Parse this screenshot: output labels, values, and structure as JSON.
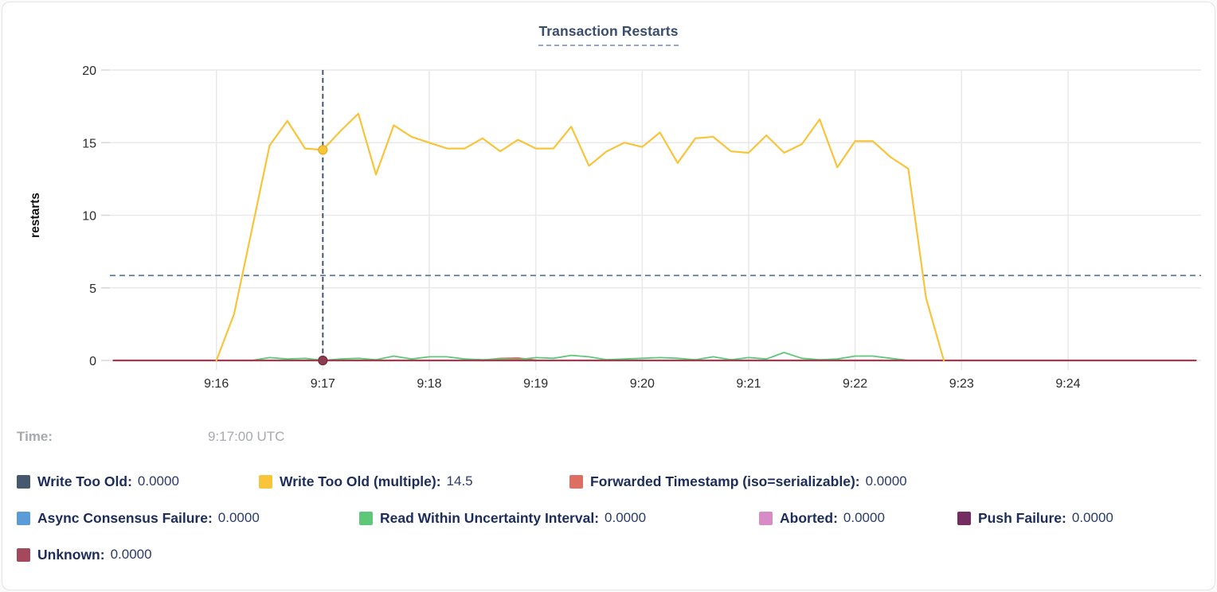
{
  "chart_data": {
    "type": "line",
    "title": "Transaction Restarts",
    "ylabel": "restarts",
    "xlabel": "",
    "ylim": [
      0,
      20
    ],
    "yticks": [
      0,
      5,
      10,
      15,
      20
    ],
    "xticks": [
      "9:16",
      "9:17",
      "9:18",
      "9:19",
      "9:20",
      "9:21",
      "9:22",
      "9:23",
      "9:24"
    ],
    "x_domain": [
      "9:15:00",
      "9:25:15"
    ],
    "grid": true,
    "legend_position": "bottom",
    "crosshair": {
      "time": "9:17:00",
      "vline_color": "#3d5068",
      "avg_guide_value": 5.85,
      "avg_guide_color": "#5b7a9b"
    },
    "hover_dots": [
      {
        "time": "9:17:00",
        "value": 14.5,
        "color": "#f8c43a",
        "stroke": "#e3ad22"
      },
      {
        "time": "9:17:00",
        "value": 0,
        "color": "#8e3a50",
        "stroke": "#6f2c3e"
      }
    ],
    "series": [
      {
        "name": "Write Too Old",
        "color": "#46586f",
        "width": 2,
        "points": [
          [
            "9:15:02",
            0
          ],
          [
            "9:25:12",
            0
          ]
        ]
      },
      {
        "name": "Async Consensus Failure",
        "color": "#5b9bd8",
        "width": 2,
        "points": [
          [
            "9:15:02",
            0
          ],
          [
            "9:25:12",
            0
          ]
        ]
      },
      {
        "name": "Aborted",
        "color": "#d78cc5",
        "width": 2,
        "points": [
          [
            "9:15:02",
            0
          ],
          [
            "9:25:12",
            0
          ]
        ]
      },
      {
        "name": "Push Failure",
        "color": "#752c61",
        "width": 2,
        "points": [
          [
            "9:15:02",
            0
          ],
          [
            "9:25:12",
            0
          ]
        ]
      },
      {
        "name": "Forwarded Timestamp (iso=serializable)",
        "color": "#df6e62",
        "width": 2.6,
        "points": [
          [
            "9:18:30",
            0
          ],
          [
            "9:18:40",
            0.12
          ],
          [
            "9:18:50",
            0.15
          ],
          [
            "9:19:00",
            0
          ]
        ]
      },
      {
        "name": "Read Within Uncertainty Interval",
        "color": "#5dc878",
        "width": 1.8,
        "points": [
          [
            "9:16:20",
            0
          ],
          [
            "9:16:30",
            0.2
          ],
          [
            "9:16:40",
            0.1
          ],
          [
            "9:16:50",
            0.15
          ],
          [
            "9:17:00",
            0
          ],
          [
            "9:17:10",
            0.1
          ],
          [
            "9:17:20",
            0.15
          ],
          [
            "9:17:30",
            0.05
          ],
          [
            "9:17:40",
            0.3
          ],
          [
            "9:17:50",
            0.1
          ],
          [
            "9:18:00",
            0.25
          ],
          [
            "9:18:10",
            0.25
          ],
          [
            "9:18:20",
            0.1
          ],
          [
            "9:18:30",
            0.05
          ],
          [
            "9:18:40",
            0.1
          ],
          [
            "9:18:50",
            0.05
          ],
          [
            "9:19:00",
            0.2
          ],
          [
            "9:19:10",
            0.15
          ],
          [
            "9:19:20",
            0.35
          ],
          [
            "9:19:30",
            0.25
          ],
          [
            "9:19:40",
            0.05
          ],
          [
            "9:19:50",
            0.1
          ],
          [
            "9:20:00",
            0.15
          ],
          [
            "9:20:10",
            0.2
          ],
          [
            "9:20:20",
            0.15
          ],
          [
            "9:20:30",
            0.05
          ],
          [
            "9:20:40",
            0.25
          ],
          [
            "9:20:50",
            0.05
          ],
          [
            "9:21:00",
            0.2
          ],
          [
            "9:21:10",
            0.1
          ],
          [
            "9:21:20",
            0.55
          ],
          [
            "9:21:30",
            0.15
          ],
          [
            "9:21:40",
            0.05
          ],
          [
            "9:21:50",
            0.1
          ],
          [
            "9:22:00",
            0.3
          ],
          [
            "9:22:10",
            0.3
          ],
          [
            "9:22:20",
            0.15
          ],
          [
            "9:22:30",
            0
          ]
        ]
      },
      {
        "name": "Unknown",
        "color": "#9c3e52",
        "width": 2.2,
        "points": [
          [
            "9:15:02",
            0
          ],
          [
            "9:25:12",
            0
          ]
        ]
      },
      {
        "name": "Write Too Old (multiple)",
        "color": "#f8c43a",
        "width": 2.2,
        "points": [
          [
            "9:16:00",
            0
          ],
          [
            "9:16:10",
            3.2
          ],
          [
            "9:16:20",
            9.0
          ],
          [
            "9:16:30",
            14.8
          ],
          [
            "9:16:40",
            16.5
          ],
          [
            "9:16:50",
            14.6
          ],
          [
            "9:17:00",
            14.5
          ],
          [
            "9:17:10",
            15.8
          ],
          [
            "9:17:20",
            17.0
          ],
          [
            "9:17:30",
            12.8
          ],
          [
            "9:17:40",
            16.2
          ],
          [
            "9:17:50",
            15.4
          ],
          [
            "9:18:00",
            15.0
          ],
          [
            "9:18:10",
            14.6
          ],
          [
            "9:18:20",
            14.6
          ],
          [
            "9:18:30",
            15.3
          ],
          [
            "9:18:40",
            14.4
          ],
          [
            "9:18:50",
            15.2
          ],
          [
            "9:19:00",
            14.6
          ],
          [
            "9:19:10",
            14.6
          ],
          [
            "9:19:20",
            16.1
          ],
          [
            "9:19:30",
            13.4
          ],
          [
            "9:19:40",
            14.4
          ],
          [
            "9:19:50",
            15.0
          ],
          [
            "9:20:00",
            14.7
          ],
          [
            "9:20:10",
            15.7
          ],
          [
            "9:20:20",
            13.6
          ],
          [
            "9:20:30",
            15.3
          ],
          [
            "9:20:40",
            15.4
          ],
          [
            "9:20:50",
            14.4
          ],
          [
            "9:21:00",
            14.3
          ],
          [
            "9:21:10",
            15.5
          ],
          [
            "9:21:20",
            14.3
          ],
          [
            "9:21:30",
            14.9
          ],
          [
            "9:21:40",
            16.6
          ],
          [
            "9:21:50",
            13.3
          ],
          [
            "9:22:00",
            15.1
          ],
          [
            "9:22:10",
            15.1
          ],
          [
            "9:22:20",
            14.0
          ],
          [
            "9:22:30",
            13.2
          ],
          [
            "9:22:40",
            4.3
          ],
          [
            "9:22:50",
            0
          ]
        ]
      }
    ]
  },
  "time_readout": {
    "label": "Time:",
    "value": "9:17:00 UTC"
  },
  "legend": {
    "rows": [
      [
        {
          "label": "Write Too Old:",
          "value": "0.0000",
          "color": "#46586f"
        },
        {
          "label": "Write Too Old (multiple):",
          "value": "14.5",
          "color": "#f8c43a"
        },
        {
          "label": "Forwarded Timestamp (iso=serializable):",
          "value": "0.0000",
          "color": "#df6e62"
        }
      ],
      [
        {
          "label": "Async Consensus Failure:",
          "value": "0.0000",
          "color": "#5b9bd8"
        },
        {
          "label": "Read Within Uncertainty Interval:",
          "value": "0.0000",
          "color": "#5dc878"
        },
        {
          "label": "Aborted:",
          "value": "0.0000",
          "color": "#d78cc5"
        },
        {
          "label": "Push Failure:",
          "value": "0.0000",
          "color": "#752c61"
        }
      ],
      [
        {
          "label": "Unknown:",
          "value": "0.0000",
          "color": "#a4485c"
        }
      ]
    ]
  },
  "colors": {
    "grid": "#e9e9e9",
    "tick": "#d8d8d8",
    "tick_text": "#2b2b2b",
    "axis_label": "#111111",
    "title": "#3a4d6d"
  }
}
